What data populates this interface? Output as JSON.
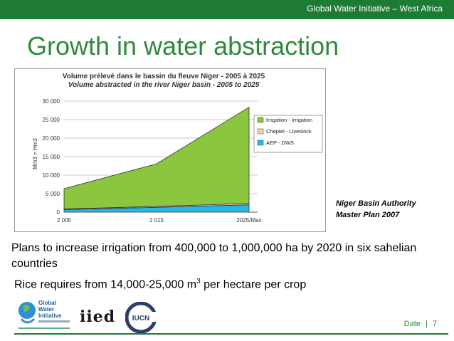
{
  "header": {
    "org": "Global Water Initiative – West Africa"
  },
  "slide": {
    "title": "Growth in water abstraction"
  },
  "chart_data": {
    "type": "area",
    "title_fr": "Volume prélevé dans le bassin du fleuve Niger - 2005 à 2025",
    "title_en": "Volume abstracted in the river Niger basin - 2005 to 2025",
    "ylabel": "Mm3 = Hm3",
    "categories": [
      "2 005",
      "2 015",
      "2025/Max"
    ],
    "yticks": [
      "0",
      "5 000",
      "10 000",
      "15 000",
      "20 000",
      "25 000",
      "30 000"
    ],
    "ylim": [
      0,
      30000
    ],
    "stacked": true,
    "series": [
      {
        "name": "AEP - DWS",
        "color": "#25b8e6",
        "values": [
          700,
          1300,
          2000
        ]
      },
      {
        "name": "Cheptel - Livestock",
        "color": "#f4d0b5",
        "values": [
          150,
          250,
          350
        ]
      },
      {
        "name": "Irrigation - Irrigation",
        "color": "#8cc63f",
        "values": [
          5500,
          11500,
          26000
        ]
      }
    ]
  },
  "source": {
    "line1": "Niger Basin Authority",
    "line2": "Master Plan 2007"
  },
  "body": {
    "p1": "Plans to increase irrigation from 400,000 to 1,000,000 ha by 2020 in six sahelian countries",
    "p2_pre": "Rice requires from 14,000-25,000 m",
    "p2_sup": "3",
    "p2_post": " per hectare per crop"
  },
  "footer": {
    "date": "Date",
    "sep": "|",
    "page": "7"
  },
  "logos": {
    "gwi_l1": "Global",
    "gwi_l2": "Water",
    "gwi_l3": "Initiative",
    "iied": "iied",
    "iucn": "IUCN"
  }
}
